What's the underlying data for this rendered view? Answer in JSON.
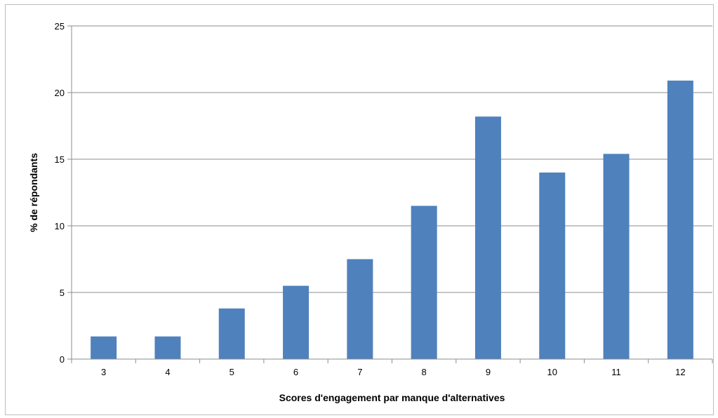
{
  "chart_data": {
    "type": "bar",
    "categories": [
      "3",
      "4",
      "5",
      "6",
      "7",
      "8",
      "9",
      "10",
      "11",
      "12"
    ],
    "values": [
      1.7,
      1.7,
      3.8,
      5.5,
      7.5,
      11.5,
      18.2,
      14.0,
      15.4,
      20.9
    ],
    "y_ticks": [
      "0",
      "5",
      "10",
      "15",
      "20",
      "25"
    ],
    "xlabel": "Scores d'engagement par manque d'alternatives",
    "ylabel": "% de répondants",
    "ylim": [
      0,
      25
    ],
    "grid": true,
    "bar_color": "#4f81bd",
    "grid_color": "#8c8c8c"
  }
}
